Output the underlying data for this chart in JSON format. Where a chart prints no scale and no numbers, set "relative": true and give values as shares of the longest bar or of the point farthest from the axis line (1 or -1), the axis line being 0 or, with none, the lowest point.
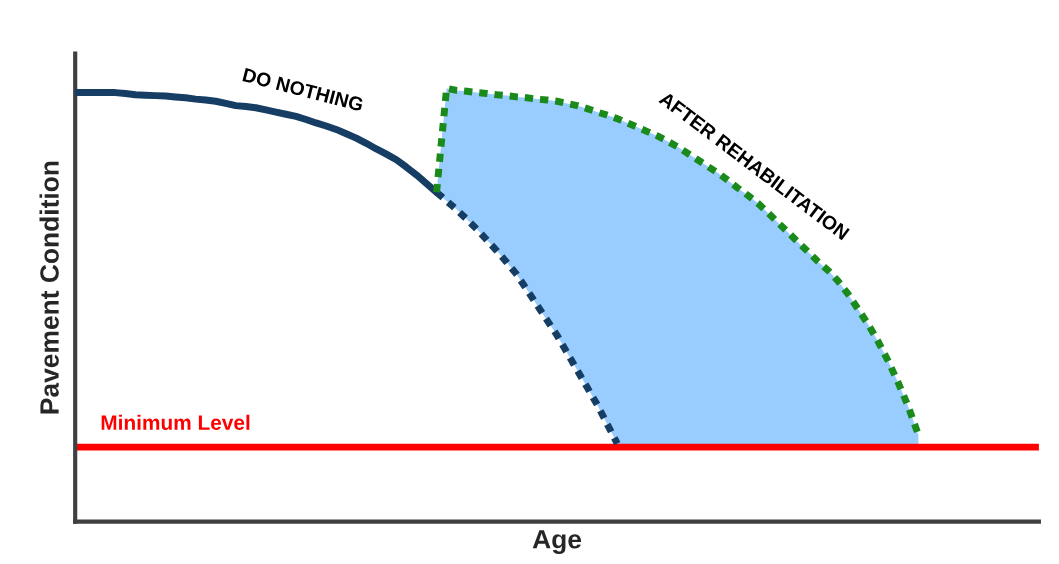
{
  "chart_data": {
    "type": "line",
    "relative": true,
    "xlabel": "Age",
    "ylabel": "Pavement Condition",
    "categories": [
      null,
      null,
      null,
      null,
      null,
      null,
      null,
      null,
      null,
      null,
      null,
      null,
      null,
      null,
      null,
      null,
      null,
      null,
      null,
      null,
      null,
      null,
      null,
      null,
      null,
      null,
      null,
      null,
      null,
      null,
      null,
      null,
      null,
      null,
      null,
      null,
      null,
      null,
      null,
      null,
      null,
      null,
      null,
      null,
      null,
      null,
      null,
      null,
      null,
      null,
      null,
      null,
      null,
      null,
      null,
      null,
      null,
      null,
      null,
      null,
      null,
      null,
      null,
      null,
      null,
      null,
      null,
      null,
      null,
      null,
      null,
      null,
      null,
      null,
      null,
      null,
      null,
      null,
      null,
      null,
      null,
      null,
      null,
      null,
      null,
      null,
      null,
      null,
      null,
      null,
      null,
      null,
      null,
      null,
      null,
      null,
      null
    ],
    "series": [
      {
        "name": "DO NOTHING",
        "color": "#163e64",
        "line_style": "solid",
        "values": [
          0.99,
          0.99,
          0.99,
          0.99,
          0.99,
          0.988,
          0.985,
          0.984,
          0.983,
          0.982,
          0.98,
          0.978,
          0.975,
          0.973,
          0.97,
          0.965,
          0.96,
          0.958,
          0.955,
          0.95,
          0.945,
          0.94,
          0.935,
          0.928,
          0.92,
          0.913,
          0.905,
          0.895,
          0.885,
          0.873,
          0.86,
          0.848,
          0.835,
          0.818,
          0.8,
          0.78,
          0.76,
          null,
          null,
          null,
          null,
          null,
          null,
          null,
          null,
          null,
          null,
          null,
          null,
          null,
          null,
          null,
          null,
          null,
          null,
          null,
          null,
          null,
          null,
          null,
          null,
          null,
          null,
          null,
          null,
          null,
          null,
          null,
          null,
          null,
          null,
          null,
          null,
          null,
          null,
          null,
          null,
          null,
          null,
          null,
          null,
          null,
          null,
          null,
          null,
          null,
          null,
          null,
          null,
          null,
          null,
          null,
          null,
          null,
          null,
          null,
          null
        ]
      },
      {
        "color": "#163e64",
        "line_style": "dotted",
        "values": [
          null,
          null,
          null,
          null,
          null,
          null,
          null,
          null,
          null,
          null,
          null,
          null,
          null,
          null,
          null,
          null,
          null,
          null,
          null,
          null,
          null,
          null,
          null,
          null,
          null,
          null,
          null,
          null,
          null,
          null,
          null,
          null,
          null,
          null,
          null,
          null,
          0.76,
          0.74,
          0.72,
          0.698,
          0.675,
          0.65,
          0.625,
          0.598,
          0.57,
          0.535,
          0.5,
          0.465,
          0.43,
          0.39,
          0.35,
          0.31,
          0.27,
          0.225,
          0.18,
          null,
          null,
          null,
          null,
          null,
          null,
          null,
          null,
          null,
          null,
          null,
          null,
          null,
          null,
          null,
          null,
          null,
          null,
          null,
          null,
          null,
          null,
          null,
          null,
          null,
          null,
          null,
          null,
          null,
          null,
          null,
          null,
          null,
          null,
          null,
          null,
          null,
          null,
          null,
          null,
          null,
          null
        ]
      },
      {
        "name": "AFTER REHABILITATION",
        "color": "#1a8a1a",
        "line_style": "dotted",
        "values": [
          null,
          null,
          null,
          null,
          null,
          null,
          null,
          null,
          null,
          null,
          null,
          null,
          null,
          null,
          null,
          null,
          null,
          null,
          null,
          null,
          null,
          null,
          null,
          null,
          null,
          null,
          null,
          null,
          null,
          null,
          null,
          null,
          null,
          null,
          null,
          null,
          0.76,
          1.0,
          0.995,
          0.993,
          0.99,
          0.988,
          0.985,
          0.983,
          0.98,
          0.978,
          0.975,
          0.973,
          0.97,
          0.965,
          0.96,
          0.953,
          0.945,
          0.938,
          0.93,
          0.92,
          0.91,
          0.9,
          0.89,
          0.878,
          0.865,
          0.85,
          0.835,
          0.82,
          0.805,
          0.788,
          0.77,
          0.753,
          0.735,
          0.713,
          0.69,
          0.668,
          0.645,
          0.623,
          0.6,
          0.58,
          0.555,
          0.525,
          0.49,
          0.455,
          0.415,
          0.37,
          0.32,
          0.265,
          0.2,
          null,
          null,
          null,
          null,
          null,
          null,
          null,
          null,
          null,
          null,
          null,
          null
        ],
        "upper": [
          null,
          null,
          null,
          null,
          null,
          null,
          null,
          null,
          null,
          null,
          null,
          null,
          null,
          null,
          null,
          null,
          null,
          null,
          null,
          null,
          null,
          null,
          null,
          null,
          null,
          null,
          null,
          null,
          null,
          null,
          null,
          null,
          null,
          null,
          null,
          null,
          0.76,
          1.0,
          0.995,
          0.993,
          0.99,
          0.988,
          0.985,
          0.983,
          0.98,
          0.978,
          0.975,
          0.973,
          0.97,
          0.965,
          0.96,
          0.953,
          0.945,
          0.938,
          0.93,
          0.92,
          0.91,
          0.9,
          0.89,
          0.878,
          0.865,
          0.85,
          0.835,
          0.82,
          0.805,
          0.788,
          0.77,
          0.753,
          0.735,
          0.713,
          0.69,
          0.668,
          0.645,
          0.623,
          0.6,
          0.58,
          0.555,
          0.525,
          0.49,
          0.455,
          0.415,
          0.37,
          0.32,
          0.265,
          0.2,
          null,
          null,
          null,
          null,
          null,
          null,
          null,
          null,
          null,
          null,
          null,
          null
        ],
        "lower": [
          null,
          null,
          null,
          null,
          null,
          null,
          null,
          null,
          null,
          null,
          null,
          null,
          null,
          null,
          null,
          null,
          null,
          null,
          null,
          null,
          null,
          null,
          null,
          null,
          null,
          null,
          null,
          null,
          null,
          null,
          null,
          null,
          null,
          null,
          null,
          null,
          0.76,
          0.74,
          0.72,
          0.698,
          0.675,
          0.65,
          0.625,
          0.598,
          0.57,
          0.535,
          0.5,
          0.465,
          0.43,
          0.39,
          0.35,
          0.31,
          0.27,
          0.225,
          0.18,
          0.172,
          0.172,
          0.172,
          0.172,
          0.172,
          0.172,
          0.172,
          0.172,
          0.172,
          0.172,
          0.172,
          0.172,
          0.172,
          0.172,
          0.172,
          0.172,
          0.172,
          0.172,
          0.172,
          0.172,
          0.172,
          0.172,
          0.172,
          0.172,
          0.172,
          0.172,
          0.172,
          0.172,
          0.172,
          0.172,
          null,
          null,
          null,
          null,
          null,
          null,
          null,
          null,
          null,
          null,
          null,
          null
        ]
      }
    ],
    "ref_lines": [
      {
        "axis": "y",
        "value": 0.172,
        "label": "Minimum Level",
        "color": "#ff0000"
      }
    ],
    "grid": false,
    "legend": false
  }
}
